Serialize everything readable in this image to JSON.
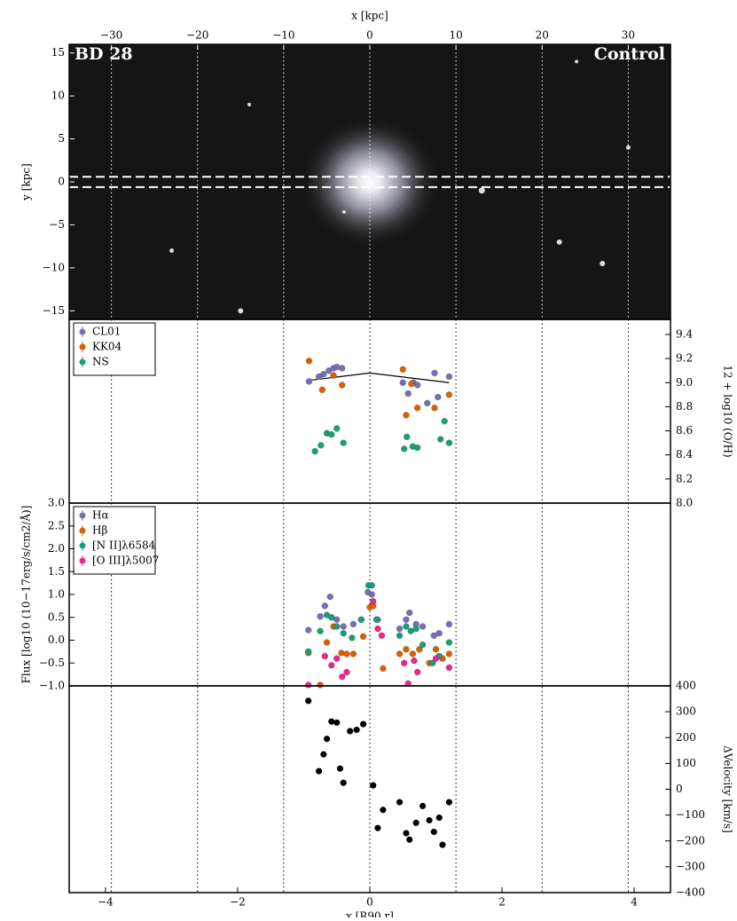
{
  "chart_data": [
    {
      "type": "image",
      "title": "BD 28",
      "subtitle": "Control",
      "xlabel": "x [kpc]",
      "ylabel": "y [kpc]",
      "xlim": [
        -34.9,
        34.9
      ],
      "xticks": [
        {
          "value": -30,
          "label": "−30"
        },
        {
          "value": -20,
          "label": "−20"
        },
        {
          "value": -10,
          "label": "−10"
        },
        0,
        10,
        20,
        30
      ],
      "ylim": [
        -16,
        16
      ],
      "yticks": [
        {
          "value": -15,
          "label": "−15"
        },
        {
          "value": -10,
          "label": "−10"
        },
        {
          "value": -5,
          "label": "−5"
        },
        0,
        5,
        10,
        15
      ],
      "slit": [
        -0.6,
        0.6
      ]
    },
    {
      "type": "scatter",
      "ylabel": "12 + log10 (O/H)",
      "xlim": [
        -4.55,
        4.55
      ],
      "ylim": [
        8.0,
        9.525
      ],
      "yticks": [
        {
          "value": 8.0,
          "label": "8.0"
        },
        8.2,
        8.4,
        8.6,
        8.8,
        {
          "value": 9.0,
          "label": "9.0"
        },
        9.2,
        9.4
      ],
      "legend": "upper left",
      "series": [
        {
          "name": "CL01",
          "color": "#7570b3",
          "x": [
            -0.92,
            -0.77,
            -0.7,
            -0.62,
            -0.55,
            -0.5,
            -0.42,
            0.5,
            0.58,
            0.66,
            0.72,
            0.87,
            0.98,
            1.03,
            1.2
          ],
          "values": [
            9.01,
            9.05,
            9.07,
            9.1,
            9.12,
            9.13,
            9.12,
            9.0,
            8.91,
            9.0,
            8.98,
            8.83,
            9.08,
            8.88,
            9.05
          ]
        },
        {
          "name": "KK04",
          "color": "#d95f02",
          "x": [
            -0.92,
            -0.72,
            -0.55,
            -0.42,
            0.5,
            0.55,
            0.63,
            0.72,
            0.98,
            1.2
          ],
          "values": [
            9.18,
            8.94,
            9.06,
            8.98,
            9.11,
            8.73,
            8.99,
            8.79,
            8.79,
            8.9
          ]
        },
        {
          "name": "NS",
          "color": "#1b9e77",
          "x": [
            -0.83,
            -0.74,
            -0.65,
            -0.58,
            -0.5,
            -0.4,
            0.52,
            0.56,
            0.65,
            0.72,
            1.07,
            1.13,
            1.2
          ],
          "values": [
            8.43,
            8.48,
            8.58,
            8.57,
            8.62,
            8.5,
            8.45,
            8.55,
            8.47,
            8.46,
            8.53,
            8.68,
            8.5
          ]
        }
      ],
      "trend": {
        "color": "#000000",
        "x": [
          -0.9,
          0.0,
          1.2
        ],
        "values": [
          9.02,
          9.08,
          9.0
        ]
      }
    },
    {
      "type": "scatter",
      "ylabel": "Flux [log10 (10−17erg/s/cm2/Å)]",
      "xlim": [
        -4.55,
        4.55
      ],
      "ylim": [
        -1,
        3
      ],
      "yticks": [
        {
          "value": -1,
          "label": "−1.0"
        },
        {
          "value": -0.5,
          "label": "−0.5"
        },
        {
          "value": 0,
          "label": "0.0"
        },
        0.5,
        {
          "value": 1,
          "label": "1.0"
        },
        1.5,
        {
          "value": 2,
          "label": "2.0"
        },
        2.5,
        {
          "value": 3,
          "label": "3.0"
        }
      ],
      "legend": "upper left",
      "series": [
        {
          "name": "Hα",
          "color": "#7570b3",
          "x": [
            -0.93,
            -0.75,
            -0.68,
            -0.6,
            -0.5,
            -0.4,
            -0.25,
            -0.13,
            -0.03,
            0.03,
            0.12,
            0.45,
            0.55,
            0.6,
            0.7,
            0.8,
            0.97,
            1.05,
            1.2
          ],
          "values": [
            0.22,
            0.52,
            0.75,
            0.95,
            0.45,
            0.3,
            0.35,
            0.45,
            1.05,
            1.0,
            0.45,
            0.25,
            0.45,
            0.6,
            0.35,
            0.3,
            0.1,
            0.15,
            0.35
          ]
        },
        {
          "name": "Hβ",
          "color": "#d95f02",
          "x": [
            -0.93,
            -0.75,
            -0.65,
            -0.55,
            -0.43,
            -0.35,
            -0.25,
            -0.1,
            0.0,
            0.05,
            0.2,
            0.45,
            0.55,
            0.65,
            0.75,
            0.9,
            1.0,
            1.1,
            1.2
          ],
          "values": [
            -0.28,
            -0.98,
            -0.05,
            0.3,
            -0.28,
            -0.3,
            -0.3,
            0.08,
            0.72,
            0.75,
            -0.62,
            -0.3,
            -0.2,
            -0.3,
            -0.2,
            -0.5,
            -0.2,
            -0.4,
            -0.3
          ]
        },
        {
          "name": "[N II]λ6584",
          "color": "#1b9e77",
          "x": [
            -0.93,
            -0.75,
            -0.65,
            -0.58,
            -0.5,
            -0.4,
            -0.27,
            -0.13,
            -0.02,
            0.03,
            0.1,
            0.45,
            0.55,
            0.62,
            0.7,
            0.8,
            0.95,
            1.05,
            1.2
          ],
          "values": [
            -0.25,
            0.2,
            0.55,
            0.5,
            0.3,
            0.15,
            0.05,
            0.45,
            1.2,
            1.2,
            0.45,
            0.1,
            0.3,
            0.2,
            0.25,
            -0.1,
            -0.5,
            -0.35,
            -0.05
          ]
        },
        {
          "name": "[O III]λ5007",
          "color": "#e7298a",
          "x": [
            -0.93,
            -0.68,
            -0.58,
            -0.5,
            -0.42,
            -0.35,
            0.05,
            0.12,
            0.18,
            0.52,
            0.58,
            0.67,
            0.72,
            1.0,
            1.2
          ],
          "values": [
            -0.98,
            -0.35,
            -0.55,
            -0.4,
            -0.8,
            -0.7,
            0.85,
            0.25,
            0.1,
            -0.5,
            -0.95,
            -0.45,
            -0.7,
            -0.4,
            -0.6
          ]
        }
      ]
    },
    {
      "type": "scatter",
      "ylabel": "ΔVelocity [km/s]",
      "xlabel": "x [R90,r]",
      "xlim": [
        -4.55,
        4.55
      ],
      "xticks": [
        {
          "value": -4,
          "label": "−4"
        },
        {
          "value": -2,
          "label": "−2"
        },
        0,
        2,
        4
      ],
      "ylim": [
        -400,
        400
      ],
      "yticks": [
        {
          "value": -400,
          "label": "−400"
        },
        {
          "value": -300,
          "label": "−300"
        },
        {
          "value": -200,
          "label": "−200"
        },
        {
          "value": -100,
          "label": "−100"
        },
        0,
        100,
        200,
        300,
        400
      ],
      "series": [
        {
          "color": "#000000",
          "x": [
            -0.93,
            -0.77,
            -0.7,
            -0.65,
            -0.58,
            -0.5,
            -0.45,
            -0.4,
            -0.3,
            -0.2,
            -0.1,
            0.05,
            0.12,
            0.2,
            0.45,
            0.55,
            0.6,
            0.7,
            0.8,
            0.9,
            0.97,
            1.05,
            1.1,
            1.2
          ],
          "values": [
            342,
            70,
            135,
            195,
            262,
            258,
            80,
            25,
            225,
            230,
            252,
            15,
            -150,
            -80,
            -50,
            -170,
            -195,
            -130,
            -65,
            -120,
            -165,
            -110,
            -215,
            -50
          ]
        }
      ]
    }
  ]
}
